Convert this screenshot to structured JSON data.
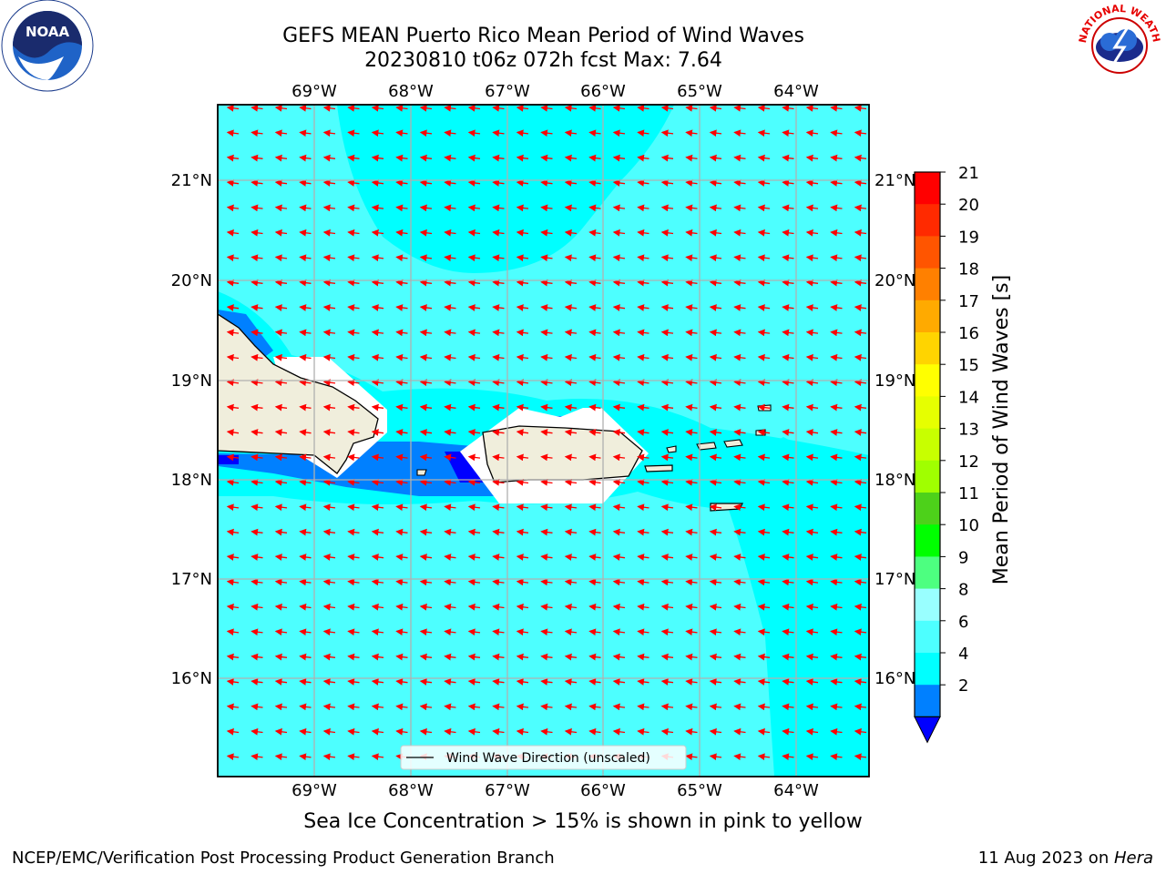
{
  "title_line1": "GEFS MEAN Puerto Rico Mean Period of Wind Waves",
  "title_line2": "20230810 t06z 072h fcst   Max: 7.64",
  "map": {
    "lon_labels": [
      "69°W",
      "68°W",
      "67°W",
      "66°W",
      "65°W",
      "64°W"
    ],
    "lat_labels": [
      "21°N",
      "20°N",
      "19°N",
      "18°N",
      "17°N",
      "16°N"
    ],
    "legend_label": "Wind Wave Direction (unscaled)",
    "arrow_color": "#ff0000",
    "ocean_color": "#4dffff",
    "land_color": "#f0eedc"
  },
  "colorbar": {
    "label": "Mean Period of Wind Waves [s]",
    "ticks": [
      "21",
      "20",
      "19",
      "18",
      "17",
      "16",
      "15",
      "14",
      "13",
      "12",
      "11",
      "10",
      "9",
      "8",
      "6",
      "4",
      "2"
    ],
    "colors": [
      "#ff0000",
      "#ff2a00",
      "#ff5500",
      "#ff8000",
      "#ffaa00",
      "#ffd400",
      "#ffff00",
      "#e6ff00",
      "#c8ff00",
      "#a0ff00",
      "#4dd11a",
      "#00ff00",
      "#4dff80",
      "#99ffff",
      "#4dffff",
      "#00ffff",
      "#0080ff"
    ],
    "under_color": "#0000ff"
  },
  "footer_note": "Sea Ice Concentration > 15% is shown in pink to yellow",
  "footer_left": "NCEP/EMC/Verification Post Processing Product Generation Branch",
  "footer_date": "11 Aug 2023 on ",
  "footer_host": "Hera",
  "logos": {
    "noaa_text": "NOAA",
    "nws_text": "NATIONAL WEATHER SERVICE"
  }
}
